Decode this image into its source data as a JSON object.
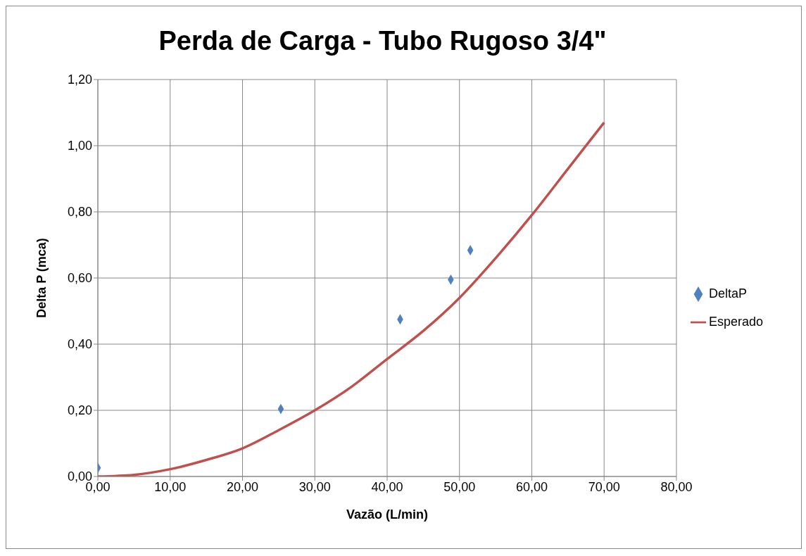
{
  "chart_data": {
    "type": "scatter",
    "title": "Perda de Carga - Tubo Rugoso 3/4\"",
    "xlabel": "Vazão (L/min)",
    "ylabel": "Delta P (mca)",
    "series": [
      {
        "name": "DeltaP",
        "color": "#4f81bd",
        "marker": "diamond",
        "x": [
          0,
          25.3,
          41.8,
          48.8,
          51.5
        ],
        "values": [
          0.026,
          0.204,
          0.475,
          0.595,
          0.684
        ]
      },
      {
        "name": "Esperado",
        "type": "line",
        "color": "#c0504d",
        "marker": "none",
        "x": [
          0,
          5,
          10,
          15,
          20,
          25,
          30,
          35,
          40,
          45,
          50,
          55,
          60,
          65,
          70
        ],
        "values": [
          0,
          0.005,
          0.022,
          0.05,
          0.085,
          0.14,
          0.2,
          0.27,
          0.355,
          0.44,
          0.54,
          0.66,
          0.79,
          0.93,
          1.07
        ]
      }
    ],
    "xlim": [
      0,
      80
    ],
    "ylim": [
      0,
      1.2
    ],
    "xticks": [
      {
        "value": 0,
        "label": "0,00"
      },
      {
        "value": 10,
        "label": "10,00"
      },
      {
        "value": 20,
        "label": "20,00"
      },
      {
        "value": 30,
        "label": "30,00"
      },
      {
        "value": 40,
        "label": "40,00"
      },
      {
        "value": 50,
        "label": "50,00"
      },
      {
        "value": 60,
        "label": "60,00"
      },
      {
        "value": 70,
        "label": "70,00"
      },
      {
        "value": 80,
        "label": "80,00"
      }
    ],
    "yticks": [
      {
        "value": 0,
        "label": "0,00"
      },
      {
        "value": 0.2,
        "label": "0,20"
      },
      {
        "value": 0.4,
        "label": "0,40"
      },
      {
        "value": 0.6,
        "label": "0,60"
      },
      {
        "value": 0.8,
        "label": "0,80"
      },
      {
        "value": 1,
        "label": "1,00"
      },
      {
        "value": 1.2,
        "label": "1,20"
      }
    ],
    "grid": true,
    "legend": "right"
  }
}
